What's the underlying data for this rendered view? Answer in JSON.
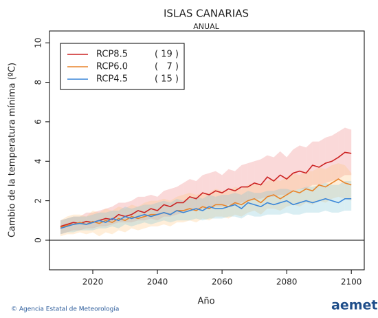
{
  "chart_data": {
    "type": "line",
    "title": "ISLAS CANARIAS",
    "subtitle": "ANUAL",
    "ylabel": "Cambio de la temperatura mínima (ºC)",
    "xlabel": "Año",
    "footer": "© Agencia Estatal de Meteorología",
    "logo": "aemet",
    "xlim": [
      2006.6,
      2104
    ],
    "xticks": [
      2020,
      2040,
      2060,
      2080,
      2100
    ],
    "ylim": [
      -1.5,
      10.6
    ],
    "yticks": [
      0,
      2,
      4,
      6,
      8,
      10
    ],
    "x": [
      2010,
      2012,
      2014,
      2016,
      2018,
      2020,
      2022,
      2024,
      2026,
      2028,
      2030,
      2032,
      2034,
      2036,
      2038,
      2040,
      2042,
      2044,
      2046,
      2048,
      2050,
      2052,
      2054,
      2056,
      2058,
      2060,
      2062,
      2064,
      2066,
      2068,
      2070,
      2072,
      2074,
      2076,
      2078,
      2080,
      2082,
      2084,
      2086,
      2088,
      2090,
      2092,
      2094,
      2096,
      2098,
      2100
    ],
    "series": [
      {
        "name": "RCP8.5",
        "color": "#cc2222",
        "band_color": "#f08080",
        "models": {
          "value": 19,
          "label": "( 19 )"
        },
        "values": [
          0.7,
          0.8,
          0.9,
          0.85,
          0.95,
          0.9,
          1.0,
          1.1,
          1.05,
          1.3,
          1.2,
          1.3,
          1.5,
          1.4,
          1.6,
          1.5,
          1.8,
          1.7,
          1.9,
          1.9,
          2.2,
          2.1,
          2.4,
          2.3,
          2.5,
          2.4,
          2.6,
          2.5,
          2.7,
          2.7,
          2.9,
          2.8,
          3.2,
          3.0,
          3.3,
          3.1,
          3.4,
          3.5,
          3.4,
          3.8,
          3.7,
          3.9,
          4.0,
          4.2,
          4.45,
          4.4
        ],
        "upper": [
          1.0,
          1.1,
          1.2,
          1.2,
          1.4,
          1.4,
          1.5,
          1.6,
          1.7,
          1.9,
          1.9,
          2.0,
          2.2,
          2.2,
          2.3,
          2.2,
          2.5,
          2.6,
          2.7,
          2.9,
          3.1,
          3.0,
          3.3,
          3.4,
          3.5,
          3.3,
          3.6,
          3.5,
          3.8,
          3.9,
          4.0,
          4.1,
          4.3,
          4.2,
          4.5,
          4.2,
          4.6,
          4.8,
          4.7,
          5.0,
          5.0,
          5.2,
          5.3,
          5.5,
          5.7,
          5.6
        ],
        "lower": [
          0.3,
          0.4,
          0.5,
          0.5,
          0.6,
          0.6,
          0.7,
          0.7,
          0.8,
          0.9,
          0.9,
          0.9,
          1.0,
          1.0,
          1.1,
          1.0,
          1.2,
          1.2,
          1.3,
          1.4,
          1.5,
          1.5,
          1.6,
          1.6,
          1.7,
          1.7,
          1.8,
          1.8,
          1.9,
          2.0,
          2.1,
          2.1,
          2.2,
          2.2,
          2.3,
          2.3,
          2.5,
          2.6,
          2.6,
          2.8,
          2.8,
          2.9,
          3.0,
          3.1,
          3.3,
          3.3
        ]
      },
      {
        "name": "RCP6.0",
        "color": "#e8842a",
        "band_color": "#ffc680",
        "models": {
          "value": 7,
          "label": "(   7 )"
        },
        "values": [
          0.65,
          0.75,
          0.8,
          0.9,
          0.8,
          0.95,
          0.85,
          1.0,
          0.9,
          1.1,
          1.0,
          1.2,
          1.1,
          1.2,
          1.3,
          1.3,
          1.4,
          1.3,
          1.5,
          1.5,
          1.6,
          1.5,
          1.7,
          1.6,
          1.8,
          1.8,
          1.7,
          1.9,
          1.8,
          2.0,
          2.1,
          1.9,
          2.2,
          2.3,
          2.1,
          2.3,
          2.5,
          2.4,
          2.6,
          2.5,
          2.8,
          2.7,
          2.9,
          3.1,
          2.9,
          2.8
        ],
        "upper": [
          1.0,
          1.2,
          1.3,
          1.3,
          1.2,
          1.5,
          1.4,
          1.6,
          1.5,
          1.7,
          1.6,
          1.8,
          1.7,
          1.9,
          2.0,
          2.0,
          2.1,
          2.0,
          2.2,
          2.3,
          2.4,
          2.3,
          2.4,
          2.4,
          2.6,
          2.5,
          2.5,
          2.7,
          2.6,
          2.8,
          2.9,
          2.8,
          3.0,
          3.1,
          3.0,
          3.2,
          3.4,
          3.3,
          3.5,
          3.5,
          3.7,
          3.6,
          3.8,
          3.9,
          3.8,
          3.4
        ],
        "lower": [
          0.2,
          0.3,
          0.3,
          0.4,
          0.3,
          0.4,
          0.2,
          0.4,
          0.3,
          0.5,
          0.4,
          0.6,
          0.5,
          0.6,
          0.7,
          0.7,
          0.8,
          0.7,
          0.9,
          0.9,
          1.0,
          0.9,
          1.1,
          1.0,
          1.2,
          1.2,
          1.1,
          1.3,
          1.2,
          1.4,
          1.5,
          1.3,
          1.6,
          1.6,
          1.5,
          1.7,
          1.8,
          1.7,
          1.9,
          1.8,
          2.0,
          1.9,
          2.1,
          2.2,
          2.1,
          2.0
        ]
      },
      {
        "name": "RCP4.5",
        "color": "#3a86d8",
        "band_color": "#80c8d8",
        "models": {
          "value": 15,
          "label": "( 15 )"
        },
        "values": [
          0.6,
          0.7,
          0.8,
          0.85,
          0.8,
          0.9,
          1.0,
          0.9,
          1.1,
          1.0,
          1.2,
          1.1,
          1.2,
          1.3,
          1.2,
          1.3,
          1.4,
          1.3,
          1.5,
          1.4,
          1.5,
          1.6,
          1.5,
          1.7,
          1.6,
          1.6,
          1.7,
          1.8,
          1.6,
          1.9,
          1.8,
          1.7,
          1.9,
          1.8,
          1.9,
          2.0,
          1.8,
          1.9,
          2.0,
          1.9,
          2.0,
          2.1,
          2.0,
          1.9,
          2.1,
          2.1
        ],
        "upper": [
          1.0,
          1.1,
          1.2,
          1.2,
          1.2,
          1.3,
          1.4,
          1.4,
          1.5,
          1.5,
          1.7,
          1.6,
          1.7,
          1.8,
          1.8,
          1.9,
          2.0,
          1.9,
          2.1,
          2.0,
          2.1,
          2.2,
          2.1,
          2.3,
          2.2,
          2.3,
          2.3,
          2.4,
          2.3,
          2.5,
          2.4,
          2.4,
          2.5,
          2.5,
          2.6,
          2.6,
          2.5,
          2.6,
          2.7,
          2.7,
          2.8,
          2.9,
          2.8,
          2.8,
          3.0,
          3.0
        ],
        "lower": [
          0.3,
          0.4,
          0.4,
          0.5,
          0.5,
          0.5,
          0.6,
          0.6,
          0.7,
          0.6,
          0.8,
          0.7,
          0.8,
          0.9,
          0.8,
          0.9,
          1.0,
          0.9,
          1.0,
          1.0,
          1.0,
          1.1,
          1.0,
          1.1,
          1.1,
          1.1,
          1.2,
          1.2,
          1.1,
          1.3,
          1.2,
          1.2,
          1.3,
          1.3,
          1.3,
          1.4,
          1.3,
          1.3,
          1.4,
          1.4,
          1.4,
          1.5,
          1.4,
          1.4,
          1.5,
          1.5
        ]
      }
    ]
  }
}
